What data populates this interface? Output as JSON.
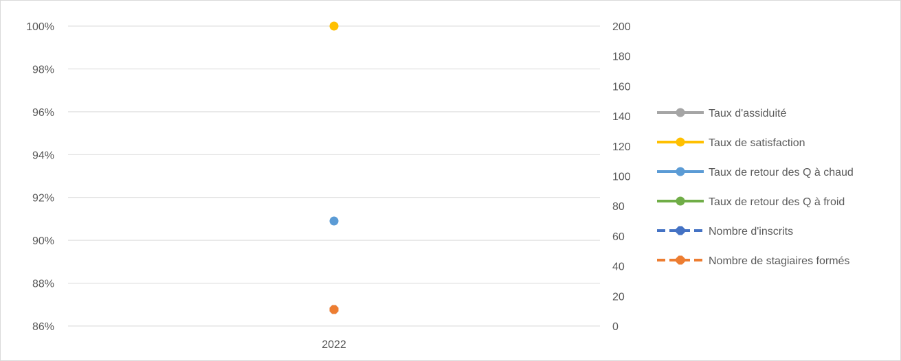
{
  "chart_data": {
    "type": "line",
    "categories": [
      "2022"
    ],
    "y_left": {
      "min": 0.86,
      "max": 1.0,
      "step": 0.02,
      "format": "percent",
      "ticks": [
        "86%",
        "88%",
        "90%",
        "92%",
        "94%",
        "96%",
        "98%",
        "100%"
      ]
    },
    "y_right": {
      "min": 0,
      "max": 200,
      "step": 20,
      "ticks": [
        "0",
        "20",
        "40",
        "60",
        "80",
        "100",
        "120",
        "140",
        "160",
        "180",
        "200"
      ]
    },
    "grid": true,
    "legend_position": "right",
    "series": [
      {
        "name": "Taux d'assiduité",
        "axis": "left",
        "values": [
          1.0
        ],
        "color": "#a5a5a5",
        "dashed": false,
        "visible_marker": false
      },
      {
        "name": "Taux de satisfaction",
        "axis": "left",
        "values": [
          1.0
        ],
        "color": "#ffc000",
        "dashed": false,
        "visible_marker": true
      },
      {
        "name": "Taux de retour des Q à chaud",
        "axis": "left",
        "values": [
          0.909
        ],
        "color": "#5b9bd5",
        "dashed": false,
        "visible_marker": true
      },
      {
        "name": "Taux de retour des Q à froid",
        "axis": "left",
        "values": [
          null
        ],
        "color": "#70ad47",
        "dashed": false,
        "visible_marker": false
      },
      {
        "name": "Nombre d'inscrits",
        "axis": "right",
        "values": [
          11
        ],
        "color": "#4472c4",
        "dashed": true,
        "visible_marker": true
      },
      {
        "name": "Nombre de stagiaires formés",
        "axis": "right",
        "values": [
          11
        ],
        "color": "#ed7d31",
        "dashed": true,
        "visible_marker": true
      }
    ]
  }
}
